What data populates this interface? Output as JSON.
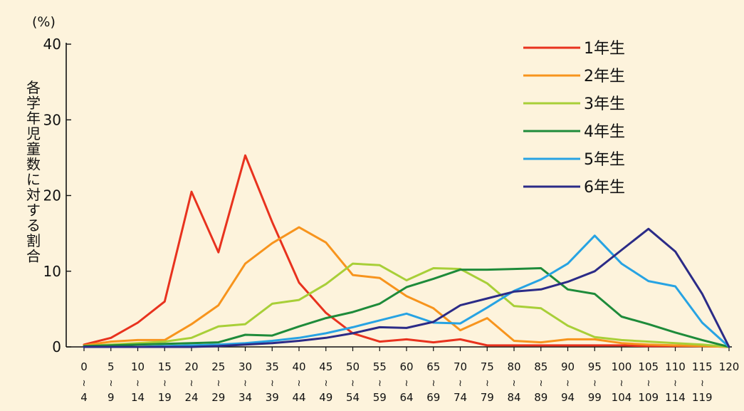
{
  "chart_data": {
    "type": "line",
    "unit_label": "(%)",
    "ylabel": "各学年児童数に対する割合",
    "ylim": [
      0,
      40
    ],
    "yticks": [
      0,
      10,
      20,
      30,
      40
    ],
    "categories": [
      {
        "top": "0",
        "bottom": "4"
      },
      {
        "top": "5",
        "bottom": "9"
      },
      {
        "top": "10",
        "bottom": "14"
      },
      {
        "top": "15",
        "bottom": "19"
      },
      {
        "top": "20",
        "bottom": "24"
      },
      {
        "top": "25",
        "bottom": "29"
      },
      {
        "top": "30",
        "bottom": "34"
      },
      {
        "top": "35",
        "bottom": "39"
      },
      {
        "top": "40",
        "bottom": "44"
      },
      {
        "top": "45",
        "bottom": "49"
      },
      {
        "top": "50",
        "bottom": "54"
      },
      {
        "top": "55",
        "bottom": "59"
      },
      {
        "top": "60",
        "bottom": "64"
      },
      {
        "top": "65",
        "bottom": "69"
      },
      {
        "top": "70",
        "bottom": "74"
      },
      {
        "top": "75",
        "bottom": "79"
      },
      {
        "top": "80",
        "bottom": "84"
      },
      {
        "top": "85",
        "bottom": "89"
      },
      {
        "top": "90",
        "bottom": "94"
      },
      {
        "top": "95",
        "bottom": "99"
      },
      {
        "top": "100",
        "bottom": "104"
      },
      {
        "top": "105",
        "bottom": "109"
      },
      {
        "top": "110",
        "bottom": "114"
      },
      {
        "top": "115",
        "bottom": "119"
      },
      {
        "top": "120",
        "bottom": ""
      }
    ],
    "range_mark": "~",
    "grid": false,
    "legend_position": "top-right",
    "series": [
      {
        "name": "1年生",
        "color": "#e8321e",
        "values": [
          0.3,
          1.2,
          3.2,
          6.0,
          20.5,
          12.5,
          25.3,
          16.5,
          8.5,
          4.5,
          1.8,
          0.7,
          1.0,
          0.6,
          1.0,
          0.2,
          0.2,
          0.2,
          0.2,
          0.2,
          0.2,
          0.1,
          0.1,
          0.1,
          0
        ]
      },
      {
        "name": "2年生",
        "color": "#f7941d",
        "values": [
          0.2,
          0.7,
          0.9,
          0.9,
          3.0,
          5.5,
          11.0,
          13.7,
          15.8,
          13.8,
          9.5,
          9.1,
          6.7,
          5.1,
          2.2,
          3.8,
          0.8,
          0.6,
          1.0,
          1.0,
          0.5,
          0.3,
          0.2,
          0.1,
          0
        ]
      },
      {
        "name": "3年生",
        "color": "#a8cf38",
        "values": [
          0.1,
          0.3,
          0.5,
          0.7,
          1.2,
          2.7,
          3.0,
          5.7,
          6.2,
          8.3,
          11.0,
          10.8,
          8.8,
          10.4,
          10.3,
          8.4,
          5.4,
          5.1,
          2.8,
          1.3,
          0.9,
          0.7,
          0.5,
          0.3,
          0
        ]
      },
      {
        "name": "4年生",
        "color": "#1e8b3a",
        "values": [
          0.1,
          0.2,
          0.3,
          0.4,
          0.5,
          0.6,
          1.6,
          1.5,
          2.7,
          3.8,
          4.6,
          5.7,
          7.9,
          9.0,
          10.2,
          10.2,
          10.3,
          10.4,
          7.6,
          7.0,
          4.0,
          3.0,
          1.9,
          0.9,
          0
        ]
      },
      {
        "name": "5年生",
        "color": "#27a3e3",
        "values": [
          0,
          0,
          0,
          0.1,
          0.2,
          0.3,
          0.5,
          0.8,
          1.2,
          1.8,
          2.6,
          3.5,
          4.4,
          3.2,
          3.1,
          5.2,
          7.4,
          8.9,
          11.0,
          14.7,
          11.0,
          8.7,
          8.0,
          3.2,
          0
        ]
      },
      {
        "name": "6年生",
        "color": "#2b2b87",
        "values": [
          0,
          0,
          0,
          0,
          0,
          0.1,
          0.3,
          0.5,
          0.8,
          1.2,
          1.8,
          2.6,
          2.5,
          3.3,
          5.5,
          6.4,
          7.3,
          7.6,
          8.6,
          10.0,
          12.8,
          15.6,
          12.6,
          7.0,
          0
        ]
      }
    ]
  }
}
